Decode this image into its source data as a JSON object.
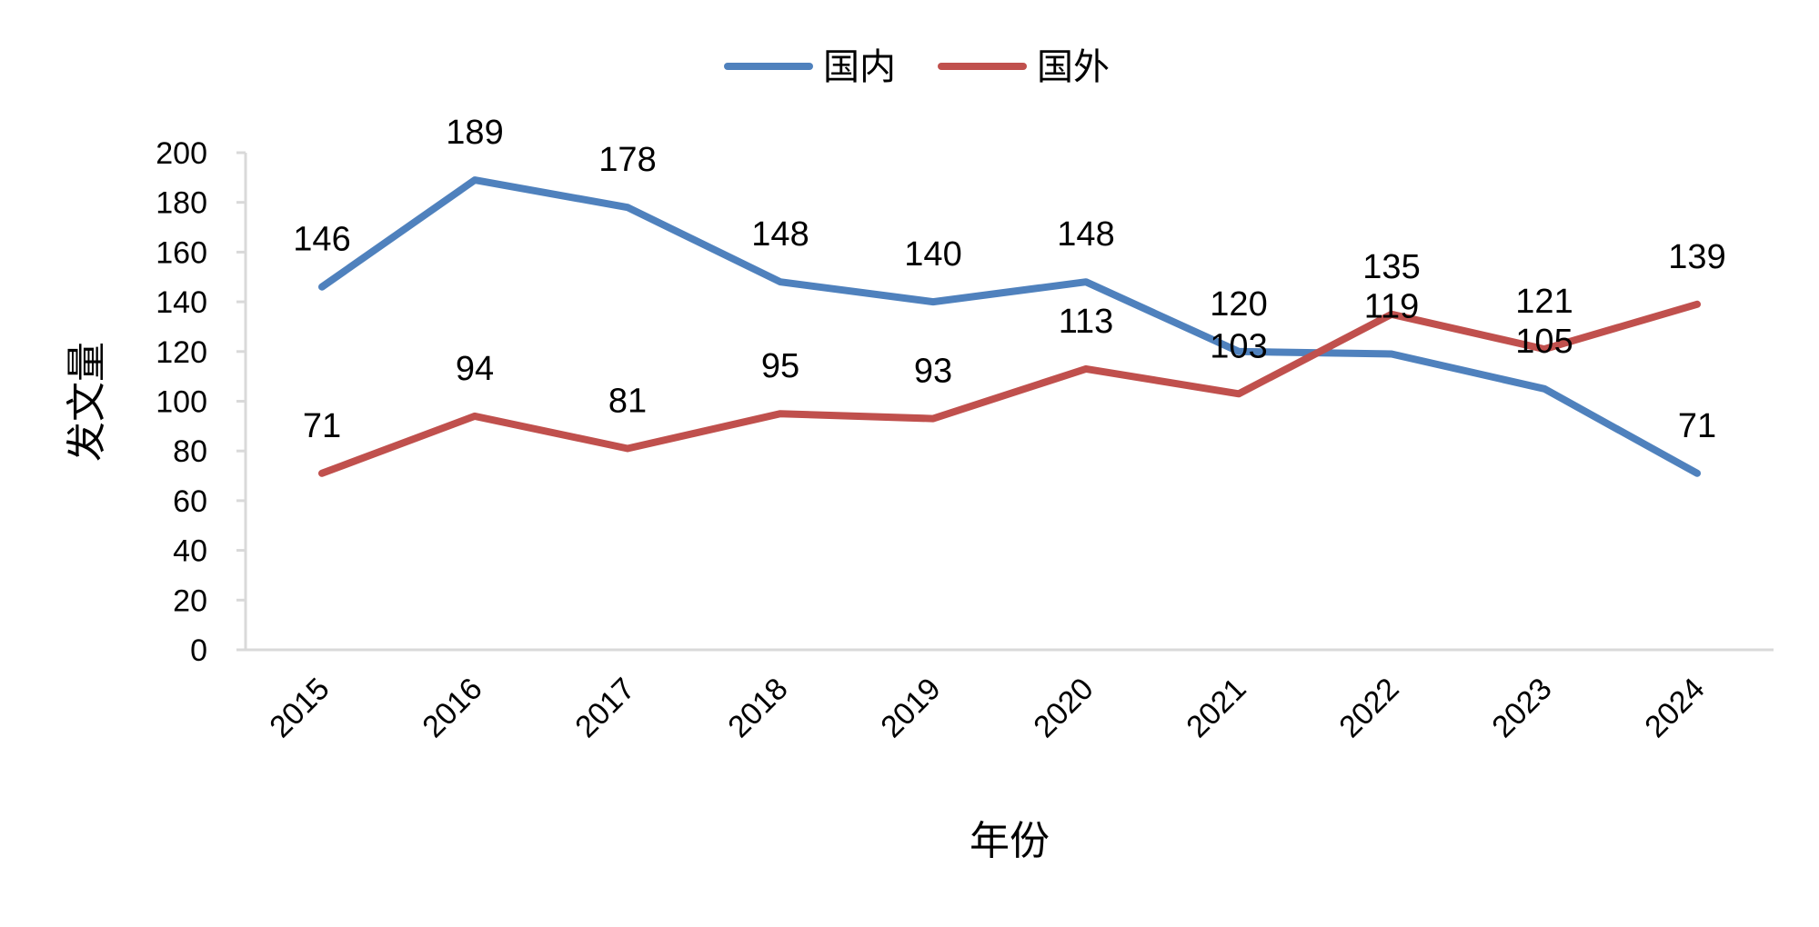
{
  "chart_data": {
    "type": "line",
    "categories": [
      "2015",
      "2016",
      "2017",
      "2018",
      "2019",
      "2020",
      "2021",
      "2022",
      "2023",
      "2024"
    ],
    "series": [
      {
        "name": "国内",
        "color": "#4f81bd",
        "values": [
          146,
          189,
          178,
          148,
          140,
          148,
          120,
          119,
          105,
          71
        ]
      },
      {
        "name": "国外",
        "color": "#c0504d",
        "values": [
          71,
          94,
          81,
          95,
          93,
          113,
          103,
          135,
          121,
          139
        ]
      }
    ],
    "xlabel": "年份",
    "ylabel": "发文量",
    "ylim": [
      0,
      200
    ],
    "yticks": [
      0,
      20,
      40,
      60,
      80,
      100,
      120,
      140,
      160,
      180,
      200
    ],
    "grid": false,
    "legend_position": "top-center",
    "data_labels": true,
    "x_tick_rotation": -45
  }
}
